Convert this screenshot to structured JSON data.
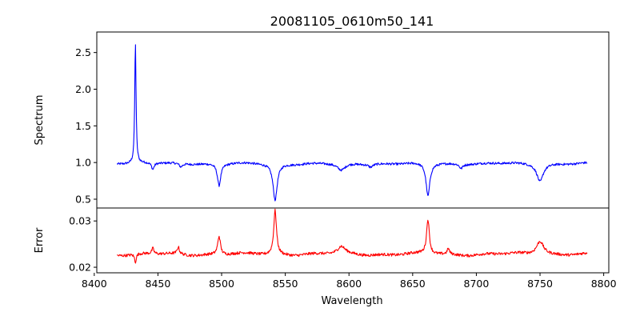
{
  "chart_data": [
    {
      "type": "line",
      "title": "20081105_0610m50_141",
      "ylabel": "Spectrum",
      "xlim": [
        8402,
        8804
      ],
      "ylim": [
        0.38,
        2.78
      ],
      "xticks": [
        8400,
        8450,
        8500,
        8550,
        8600,
        8650,
        8700,
        8750,
        8800
      ],
      "yticks": [
        0.5,
        1.0,
        1.5,
        2.0,
        2.5
      ],
      "ytick_labels": [
        "0.5",
        "1.0",
        "1.5",
        "2.0",
        "2.5"
      ],
      "series_color": "#0000ff",
      "x_range": [
        8418,
        8787
      ],
      "continuum": 0.99,
      "features": [
        {
          "center": 8432.3,
          "width": 0.6,
          "depth": 1.66,
          "kind": "emission"
        },
        {
          "center": 8446.0,
          "width": 1.2,
          "depth": -0.09
        },
        {
          "center": 8468.0,
          "width": 1.5,
          "depth": -0.05
        },
        {
          "center": 8498.0,
          "width": 1.6,
          "depth": -0.3
        },
        {
          "center": 8542.0,
          "width": 2.0,
          "depth": -0.5
        },
        {
          "center": 8594.0,
          "width": 4.0,
          "depth": -0.1
        },
        {
          "center": 8617.0,
          "width": 2.0,
          "depth": -0.04
        },
        {
          "center": 8662.0,
          "width": 1.8,
          "depth": -0.45
        },
        {
          "center": 8688.0,
          "width": 1.5,
          "depth": -0.06
        },
        {
          "center": 8750.0,
          "width": 3.0,
          "depth": -0.24
        }
      ]
    },
    {
      "type": "line",
      "xlabel": "Wavelength",
      "ylabel": "Error",
      "xlim": [
        8402,
        8804
      ],
      "ylim": [
        0.0188,
        0.0328
      ],
      "xticks": [
        8400,
        8450,
        8500,
        8550,
        8600,
        8650,
        8700,
        8750,
        8800
      ],
      "xtick_labels": [
        "8400",
        "8450",
        "8500",
        "8550",
        "8600",
        "8650",
        "8700",
        "8750",
        "8800"
      ],
      "yticks": [
        0.02,
        0.03
      ],
      "ytick_labels": [
        "0.02",
        "0.03"
      ],
      "series_color": "#ff0000",
      "x_range": [
        8418,
        8787
      ],
      "baseline": 0.0228,
      "features": [
        {
          "center": 8432.3,
          "width": 0.8,
          "depth": -0.0018
        },
        {
          "center": 8446.0,
          "width": 1.0,
          "depth": 0.0012
        },
        {
          "center": 8466.0,
          "width": 1.0,
          "depth": 0.0015
        },
        {
          "center": 8498.0,
          "width": 1.3,
          "depth": 0.004
        },
        {
          "center": 8542.0,
          "width": 1.3,
          "depth": 0.0095
        },
        {
          "center": 8594.0,
          "width": 3.5,
          "depth": 0.0015
        },
        {
          "center": 8662.0,
          "width": 1.3,
          "depth": 0.0075
        },
        {
          "center": 8678.0,
          "width": 1.0,
          "depth": 0.0012
        },
        {
          "center": 8750.0,
          "width": 3.5,
          "depth": 0.003
        }
      ]
    }
  ]
}
